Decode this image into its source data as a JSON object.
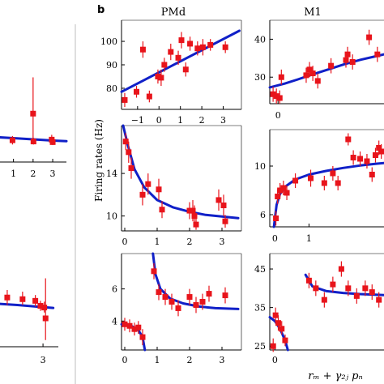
{
  "figure": {
    "panel_label": "b",
    "column_titles": [
      "PMd",
      "M1"
    ],
    "y_axis_label": "Firing rates (Hz)",
    "x_axis_label": "rₘ + γ₂ⱼ pₙ"
  },
  "colors": {
    "points": "#e8141b",
    "fit": "#1020c8",
    "axes": "#000000",
    "divider": "#c8c8c8"
  },
  "chart_data": [
    {
      "type": "scatter",
      "panel": "left-col-row1",
      "xlim": [
        -0.1,
        3.7
      ],
      "ylim": [
        6,
        21
      ],
      "xticks": [
        1,
        2,
        3
      ],
      "yticks": [],
      "points": [
        {
          "x": 0.03,
          "y": 10.0,
          "lo": 9.0,
          "hi": 11.0
        },
        {
          "x": 0.95,
          "y": 9.6,
          "lo": 8.9,
          "hi": 10.3
        },
        {
          "x": 2.0,
          "y": 14.0,
          "lo": 9.0,
          "hi": 20.0
        },
        {
          "x": 2.02,
          "y": 9.4,
          "lo": 8.9,
          "hi": 10.0
        },
        {
          "x": 2.95,
          "y": 9.7,
          "lo": 8.9,
          "hi": 10.5
        },
        {
          "x": 3.0,
          "y": 9.3,
          "lo": 8.8,
          "hi": 9.9
        }
      ],
      "fit": [
        [
          -0.1,
          10.15
        ],
        [
          1,
          9.95
        ],
        [
          2,
          9.75
        ],
        [
          3,
          9.55
        ],
        [
          3.7,
          9.45
        ]
      ]
    },
    {
      "type": "scatter",
      "panel": "left-col-row2",
      "xlim": [
        1.0,
        3.6
      ],
      "ylim": [
        0,
        10
      ],
      "xticks": [
        3
      ],
      "yticks": [],
      "points": [
        {
          "x": 1.05,
          "y": 5.9,
          "lo": 5.0,
          "hi": 7.0
        },
        {
          "x": 1.6,
          "y": 5.9,
          "lo": 5.0,
          "hi": 6.8
        },
        {
          "x": 2.2,
          "y": 5.7,
          "lo": 5.0,
          "hi": 6.6
        },
        {
          "x": 2.7,
          "y": 5.5,
          "lo": 4.8,
          "hi": 6.2
        },
        {
          "x": 2.9,
          "y": 4.9,
          "lo": 4.3,
          "hi": 5.5
        },
        {
          "x": 3.05,
          "y": 4.7,
          "lo": 4.1,
          "hi": 5.4
        },
        {
          "x": 3.1,
          "y": 3.4,
          "lo": 0.8,
          "hi": 8.2
        }
      ],
      "fit": [
        [
          1.0,
          5.2
        ],
        [
          2.0,
          5.0
        ],
        [
          3.0,
          4.75
        ],
        [
          3.4,
          4.65
        ]
      ]
    },
    {
      "type": "scatter",
      "panel": "PMd-row1",
      "xlim": [
        -1.75,
        3.85
      ],
      "ylim": [
        71,
        109
      ],
      "xticks": [
        -1,
        0,
        1,
        2,
        3
      ],
      "yticks": [
        80,
        90,
        100
      ],
      "points": [
        {
          "x": -1.6,
          "y": 75,
          "lo": 72,
          "hi": 78
        },
        {
          "x": -1.05,
          "y": 78.5,
          "lo": 76,
          "hi": 81
        },
        {
          "x": -0.75,
          "y": 96.5,
          "lo": 93,
          "hi": 100
        },
        {
          "x": -0.45,
          "y": 76.5,
          "lo": 74,
          "hi": 79
        },
        {
          "x": -0.05,
          "y": 85,
          "lo": 82,
          "hi": 88
        },
        {
          "x": 0.1,
          "y": 84.5,
          "lo": 81,
          "hi": 88
        },
        {
          "x": 0.25,
          "y": 90,
          "lo": 87,
          "hi": 93
        },
        {
          "x": 0.55,
          "y": 95.5,
          "lo": 92,
          "hi": 99
        },
        {
          "x": 0.9,
          "y": 93,
          "lo": 90,
          "hi": 96
        },
        {
          "x": 1.05,
          "y": 100.5,
          "lo": 97,
          "hi": 104
        },
        {
          "x": 1.25,
          "y": 88,
          "lo": 85,
          "hi": 91
        },
        {
          "x": 1.45,
          "y": 99,
          "lo": 96,
          "hi": 102
        },
        {
          "x": 1.8,
          "y": 97,
          "lo": 94,
          "hi": 100
        },
        {
          "x": 2.05,
          "y": 97.5,
          "lo": 94,
          "hi": 101
        },
        {
          "x": 2.4,
          "y": 98.5,
          "lo": 96,
          "hi": 101
        },
        {
          "x": 3.1,
          "y": 97.5,
          "lo": 95,
          "hi": 100
        }
      ],
      "fit": [
        [
          -1.75,
          78.5
        ],
        [
          3.75,
          104.5
        ]
      ]
    },
    {
      "type": "scatter",
      "panel": "M1-row1",
      "xlim": [
        -0.25,
        3.2
      ],
      "ylim": [
        23,
        45
      ],
      "xticks": [
        0
      ],
      "yticks": [
        30,
        40
      ],
      "points": [
        {
          "x": -0.15,
          "y": 25.5,
          "lo": 23.5,
          "hi": 27.5
        },
        {
          "x": -0.05,
          "y": 25,
          "lo": 23,
          "hi": 27
        },
        {
          "x": 0.05,
          "y": 24.5,
          "lo": 23,
          "hi": 26.5
        },
        {
          "x": 0.1,
          "y": 30,
          "lo": 28,
          "hi": 32
        },
        {
          "x": 0.85,
          "y": 30.5,
          "lo": 28.5,
          "hi": 32.5
        },
        {
          "x": 0.95,
          "y": 32,
          "lo": 30,
          "hi": 34
        },
        {
          "x": 1.05,
          "y": 31,
          "lo": 29,
          "hi": 33
        },
        {
          "x": 1.2,
          "y": 29,
          "lo": 27,
          "hi": 31
        },
        {
          "x": 1.6,
          "y": 33,
          "lo": 31,
          "hi": 35
        },
        {
          "x": 2.05,
          "y": 34.5,
          "lo": 32.5,
          "hi": 36.5
        },
        {
          "x": 2.1,
          "y": 36,
          "lo": 34,
          "hi": 38
        },
        {
          "x": 2.25,
          "y": 34,
          "lo": 32,
          "hi": 36
        },
        {
          "x": 2.75,
          "y": 40.5,
          "lo": 38.5,
          "hi": 42.5
        },
        {
          "x": 3.0,
          "y": 36,
          "lo": 34,
          "hi": 38
        }
      ],
      "fit": [
        [
          -0.25,
          27.3
        ],
        [
          0.2,
          28.3
        ],
        [
          0.6,
          29.4
        ],
        [
          1.0,
          30.6
        ],
        [
          1.5,
          32.0
        ],
        [
          2.0,
          33.4
        ],
        [
          2.5,
          34.6
        ],
        [
          3.0,
          35.6
        ],
        [
          3.2,
          36.0
        ]
      ]
    },
    {
      "type": "scatter",
      "panel": "PMd-row2",
      "xlim": [
        -0.1,
        3.6
      ],
      "ylim": [
        8.6,
        18.5
      ],
      "xticks": [
        0,
        1,
        2,
        3
      ],
      "yticks": [
        10,
        14
      ],
      "points": [
        {
          "x": 0.03,
          "y": 17,
          "lo": 16.2,
          "hi": 17.8
        },
        {
          "x": 0.12,
          "y": 16,
          "lo": 15,
          "hi": 17
        },
        {
          "x": 0.2,
          "y": 14.5,
          "lo": 13.5,
          "hi": 15.5
        },
        {
          "x": 0.55,
          "y": 12,
          "lo": 11,
          "hi": 13
        },
        {
          "x": 0.72,
          "y": 13,
          "lo": 12,
          "hi": 14
        },
        {
          "x": 1.05,
          "y": 12.5,
          "lo": 11.5,
          "hi": 13.5
        },
        {
          "x": 1.15,
          "y": 10.6,
          "lo": 9.8,
          "hi": 11.4
        },
        {
          "x": 2.0,
          "y": 10.5,
          "lo": 9.7,
          "hi": 11.3
        },
        {
          "x": 2.1,
          "y": 10.5,
          "lo": 9.5,
          "hi": 11.5
        },
        {
          "x": 2.15,
          "y": 10.0,
          "lo": 9.0,
          "hi": 11.0
        },
        {
          "x": 2.2,
          "y": 9.2,
          "lo": 8.7,
          "hi": 9.8
        },
        {
          "x": 2.9,
          "y": 11.5,
          "lo": 10.5,
          "hi": 12.5
        },
        {
          "x": 3.05,
          "y": 11.0,
          "lo": 10.0,
          "hi": 12.0
        },
        {
          "x": 3.1,
          "y": 9.5,
          "lo": 8.9,
          "hi": 10.1
        }
      ],
      "fit": [
        [
          -0.05,
          18.5
        ],
        [
          0.1,
          16.6
        ],
        [
          0.3,
          14.4
        ],
        [
          0.6,
          12.7
        ],
        [
          1.0,
          11.5
        ],
        [
          1.5,
          10.8
        ],
        [
          2.0,
          10.4
        ],
        [
          2.5,
          10.1
        ],
        [
          3.0,
          9.95
        ],
        [
          3.5,
          9.8
        ]
      ]
    },
    {
      "type": "scatter",
      "panel": "M1-row2",
      "xlim": [
        -0.15,
        3.2
      ],
      "ylim": [
        5,
        13
      ],
      "xticks": [
        0,
        1
      ],
      "yticks": [
        6,
        10
      ],
      "points": [
        {
          "x": 0.03,
          "y": 5.7,
          "lo": 5.1,
          "hi": 6.3
        },
        {
          "x": 0.08,
          "y": 7.5,
          "lo": 6.9,
          "hi": 8.1
        },
        {
          "x": 0.15,
          "y": 8.0,
          "lo": 7.4,
          "hi": 8.6
        },
        {
          "x": 0.25,
          "y": 8.2,
          "lo": 7.6,
          "hi": 8.8
        },
        {
          "x": 0.35,
          "y": 7.8,
          "lo": 7.2,
          "hi": 8.4
        },
        {
          "x": 0.6,
          "y": 8.8,
          "lo": 8.2,
          "hi": 9.4
        },
        {
          "x": 1.05,
          "y": 9.0,
          "lo": 8.3,
          "hi": 9.7
        },
        {
          "x": 1.45,
          "y": 8.6,
          "lo": 8.0,
          "hi": 9.2
        },
        {
          "x": 1.7,
          "y": 9.4,
          "lo": 8.8,
          "hi": 10.0
        },
        {
          "x": 1.85,
          "y": 8.6,
          "lo": 8.0,
          "hi": 9.2
        },
        {
          "x": 2.15,
          "y": 12.2,
          "lo": 11.7,
          "hi": 12.7
        },
        {
          "x": 2.3,
          "y": 10.7,
          "lo": 10.1,
          "hi": 11.3
        },
        {
          "x": 2.5,
          "y": 10.6,
          "lo": 10.0,
          "hi": 11.2
        },
        {
          "x": 2.7,
          "y": 10.4,
          "lo": 9.8,
          "hi": 11.0
        },
        {
          "x": 2.85,
          "y": 9.3,
          "lo": 8.7,
          "hi": 9.9
        },
        {
          "x": 2.95,
          "y": 10.9,
          "lo": 10.3,
          "hi": 11.5
        },
        {
          "x": 3.05,
          "y": 11.5,
          "lo": 10.9,
          "hi": 12.1
        },
        {
          "x": 3.12,
          "y": 11.2,
          "lo": 10.6,
          "hi": 11.8
        }
      ],
      "fit": [
        [
          -0.03,
          5.0
        ],
        [
          0.05,
          6.8
        ],
        [
          0.15,
          7.7
        ],
        [
          0.3,
          8.3
        ],
        [
          0.6,
          8.9
        ],
        [
          1.0,
          9.3
        ],
        [
          1.5,
          9.6
        ],
        [
          2.0,
          9.85
        ],
        [
          2.5,
          10.05
        ],
        [
          3.0,
          10.2
        ],
        [
          3.2,
          10.25
        ]
      ]
    },
    {
      "type": "scatter",
      "panel": "PMd-row3",
      "xlim": [
        -0.1,
        3.6
      ],
      "ylim": [
        2.2,
        8.2
      ],
      "xticks": [
        0,
        1,
        2,
        3
      ],
      "yticks": [
        4,
        6
      ],
      "points": [
        {
          "x": 0.0,
          "y": 3.8,
          "lo": 3.4,
          "hi": 4.2
        },
        {
          "x": 0.15,
          "y": 3.7,
          "lo": 3.3,
          "hi": 4.1
        },
        {
          "x": 0.3,
          "y": 3.5,
          "lo": 3.1,
          "hi": 3.9
        },
        {
          "x": 0.42,
          "y": 3.6,
          "lo": 3.2,
          "hi": 4.0
        },
        {
          "x": 0.55,
          "y": 3.0,
          "lo": 2.5,
          "hi": 3.5
        },
        {
          "x": 0.9,
          "y": 7.1,
          "lo": 6.6,
          "hi": 7.6
        },
        {
          "x": 1.05,
          "y": 5.8,
          "lo": 5.3,
          "hi": 6.3
        },
        {
          "x": 1.25,
          "y": 5.5,
          "lo": 5.0,
          "hi": 6.0
        },
        {
          "x": 1.45,
          "y": 5.2,
          "lo": 4.7,
          "hi": 5.7
        },
        {
          "x": 1.65,
          "y": 4.8,
          "lo": 4.3,
          "hi": 5.3
        },
        {
          "x": 2.0,
          "y": 5.5,
          "lo": 5.0,
          "hi": 6.0
        },
        {
          "x": 2.2,
          "y": 5.0,
          "lo": 4.5,
          "hi": 5.5
        },
        {
          "x": 2.4,
          "y": 5.2,
          "lo": 4.7,
          "hi": 5.7
        },
        {
          "x": 2.6,
          "y": 5.7,
          "lo": 5.2,
          "hi": 6.2
        },
        {
          "x": 3.1,
          "y": 5.6,
          "lo": 5.1,
          "hi": 6.1
        }
      ],
      "fit_segments": [
        [
          [
            -0.1,
            3.8
          ],
          [
            0.2,
            3.7
          ],
          [
            0.4,
            3.5
          ],
          [
            0.55,
            3.0
          ],
          [
            0.62,
            2.2
          ]
        ],
        [
          [
            0.87,
            8.2
          ],
          [
            0.95,
            6.9
          ],
          [
            1.1,
            6.0
          ],
          [
            1.4,
            5.4
          ],
          [
            1.8,
            5.1
          ],
          [
            2.3,
            4.9
          ],
          [
            2.8,
            4.8
          ],
          [
            3.5,
            4.75
          ]
        ]
      ]
    },
    {
      "type": "scatter",
      "panel": "M1-row3",
      "xlim": [
        -0.15,
        3.2
      ],
      "ylim": [
        24,
        49
      ],
      "xticks": [
        0
      ],
      "yticks": [
        25,
        35,
        45
      ],
      "points": [
        {
          "x": -0.05,
          "y": 25,
          "lo": 23.5,
          "hi": 27
        },
        {
          "x": 0.02,
          "y": 33,
          "lo": 31,
          "hi": 35
        },
        {
          "x": 0.1,
          "y": 31,
          "lo": 29,
          "hi": 33
        },
        {
          "x": 0.2,
          "y": 29.5,
          "lo": 28,
          "hi": 31.5
        },
        {
          "x": 0.3,
          "y": 26.5,
          "lo": 25,
          "hi": 28
        },
        {
          "x": 1.0,
          "y": 42,
          "lo": 40,
          "hi": 44
        },
        {
          "x": 1.2,
          "y": 40,
          "lo": 38,
          "hi": 42
        },
        {
          "x": 1.45,
          "y": 37,
          "lo": 35,
          "hi": 39
        },
        {
          "x": 1.7,
          "y": 41,
          "lo": 39,
          "hi": 43
        },
        {
          "x": 1.95,
          "y": 45,
          "lo": 43,
          "hi": 47
        },
        {
          "x": 2.15,
          "y": 40,
          "lo": 38,
          "hi": 42
        },
        {
          "x": 2.4,
          "y": 38,
          "lo": 36,
          "hi": 40
        },
        {
          "x": 2.65,
          "y": 40,
          "lo": 38,
          "hi": 42
        },
        {
          "x": 2.85,
          "y": 39,
          "lo": 37,
          "hi": 41
        },
        {
          "x": 3.05,
          "y": 37,
          "lo": 35,
          "hi": 39
        }
      ],
      "fit_segments": [
        [
          [
            -0.15,
            32.5
          ],
          [
            0.0,
            31.5
          ],
          [
            0.15,
            29.5
          ],
          [
            0.3,
            26.5
          ],
          [
            0.38,
            24
          ]
        ],
        [
          [
            0.9,
            43.5
          ],
          [
            1.1,
            40.5
          ],
          [
            1.5,
            39.3
          ],
          [
            2.0,
            38.8
          ],
          [
            2.5,
            38.5
          ],
          [
            3.0,
            38.3
          ],
          [
            3.2,
            38.25
          ]
        ]
      ]
    }
  ]
}
